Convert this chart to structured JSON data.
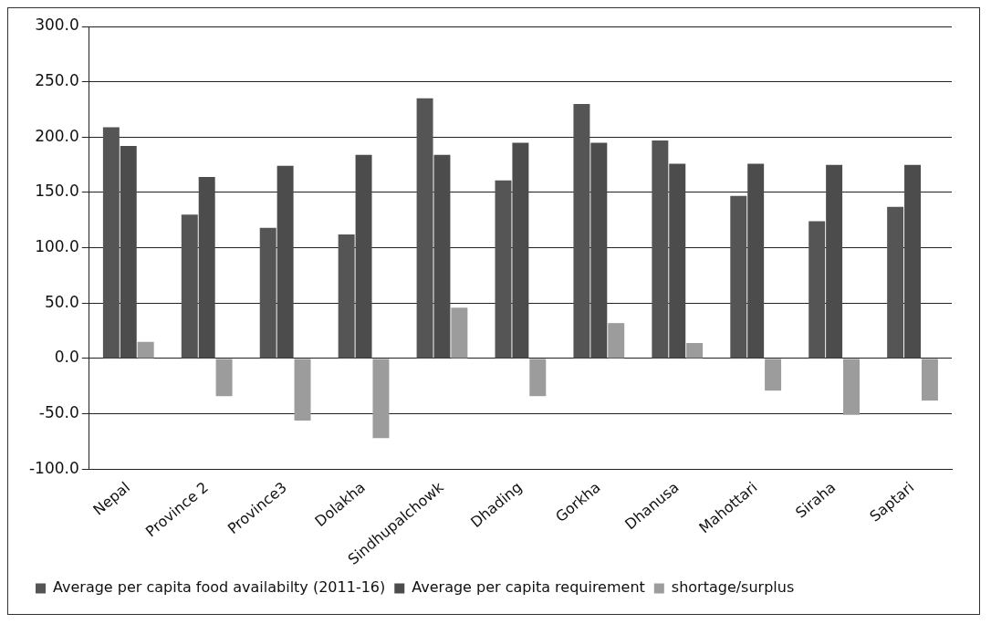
{
  "chart_data": {
    "type": "bar",
    "categories": [
      "Nepal",
      "Province 2",
      "Province3",
      "Dolakha",
      "Sindhupalchowk",
      "Dhading",
      "Gorkha",
      "Dhanusa",
      "Mahottari",
      "Siraha",
      "Saptari"
    ],
    "series": [
      {
        "name": "Average per capita food availabilty (2011-16)",
        "color": "#555555",
        "values": [
          209,
          130,
          118,
          112,
          235,
          161,
          230,
          197,
          147,
          124,
          137
        ]
      },
      {
        "name": "Average per capita requirement",
        "color": "#4c4c4c",
        "values": [
          192,
          164,
          174,
          184,
          184,
          195,
          195,
          176,
          176,
          175,
          175
        ]
      },
      {
        "name": "shortage/surplus",
        "color": "#9c9c9c",
        "values": [
          15,
          -34,
          -56,
          -72,
          46,
          -34,
          32,
          14,
          -29,
          -51,
          -38
        ]
      }
    ],
    "ylim": [
      -100,
      300
    ],
    "yticks": [
      {
        "value": -100,
        "label": "-100.0"
      },
      {
        "value": -50,
        "label": "-50.0"
      },
      {
        "value": 0,
        "label": "0.0"
      },
      {
        "value": 50,
        "label": "50.0"
      },
      {
        "value": 100,
        "label": "100.0"
      },
      {
        "value": 150,
        "label": "150.0"
      },
      {
        "value": 200,
        "label": "200.0"
      },
      {
        "value": 250,
        "label": "250.0"
      },
      {
        "value": 300,
        "label": "300.0"
      }
    ],
    "grid": "y",
    "legend": "bottom"
  }
}
